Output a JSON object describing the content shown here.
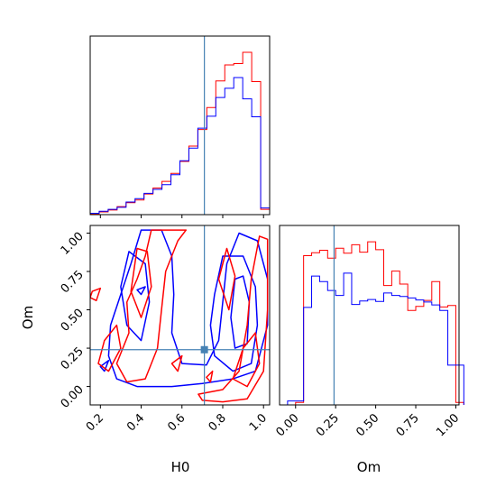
{
  "chart_data": [
    {
      "type": "histogram",
      "panel": "top-left",
      "variable": "H0",
      "xlim": [
        0.15,
        1.03
      ],
      "x_edges": [
        0.15,
        0.194,
        0.238,
        0.282,
        0.326,
        0.37,
        0.414,
        0.458,
        0.502,
        0.546,
        0.59,
        0.634,
        0.678,
        0.722,
        0.766,
        0.81,
        0.854,
        0.898,
        0.942,
        0.986,
        1.03
      ],
      "truth_line": 0.71,
      "series": [
        {
          "color": "#ff0000",
          "values": [
            1,
            4,
            7,
            12,
            18,
            22,
            31,
            40,
            50,
            62,
            80,
            103,
            128,
            161,
            201,
            225,
            227,
            244,
            200,
            8
          ]
        },
        {
          "color": "#0000ff",
          "values": [
            2,
            5,
            8,
            11,
            19,
            24,
            32,
            38,
            45,
            60,
            81,
            100,
            130,
            148,
            176,
            190,
            206,
            174,
            147,
            10
          ]
        }
      ]
    },
    {
      "type": "contour",
      "panel": "bottom-left",
      "xlabel": "H0",
      "ylabel": "Om",
      "xlim": [
        0.15,
        1.03
      ],
      "ylim": [
        -0.12,
        1.05
      ],
      "xticks": [
        "0.2",
        "0.4",
        "0.6",
        "0.8",
        "1.0"
      ],
      "yticks": [
        "0.00",
        "0.25",
        "0.50",
        "0.75",
        "1.00"
      ],
      "xtick_values": [
        0.2,
        0.4,
        0.6,
        0.8,
        1.0
      ],
      "ytick_values": [
        0.0,
        0.25,
        0.5,
        0.75,
        1.0
      ],
      "truth": {
        "H0": 0.71,
        "Om": 0.24
      },
      "series": [
        {
          "color": "#0000ff",
          "contours": [
            [
              [
                0.4,
                1.02
              ],
              [
                0.35,
                0.8
              ],
              [
                0.3,
                0.6
              ],
              [
                0.25,
                0.4
              ],
              [
                0.24,
                0.2
              ],
              [
                0.28,
                0.05
              ],
              [
                0.38,
                0.0
              ],
              [
                0.55,
                0.0
              ],
              [
                0.7,
                0.02
              ],
              [
                0.85,
                0.05
              ],
              [
                0.96,
                0.1
              ],
              [
                1.02,
                0.4
              ],
              [
                1.02,
                0.7
              ],
              [
                0.97,
                0.95
              ],
              [
                0.88,
                1.0
              ],
              [
                0.82,
                0.8
              ],
              [
                0.8,
                0.55
              ],
              [
                0.78,
                0.3
              ],
              [
                0.72,
                0.14
              ],
              [
                0.6,
                0.15
              ],
              [
                0.55,
                0.35
              ],
              [
                0.56,
                0.6
              ],
              [
                0.55,
                0.85
              ],
              [
                0.5,
                1.02
              ]
            ],
            [
              [
                0.8,
                0.85
              ],
              [
                0.76,
                0.6
              ],
              [
                0.74,
                0.4
              ],
              [
                0.76,
                0.2
              ],
              [
                0.85,
                0.1
              ],
              [
                0.94,
                0.15
              ],
              [
                0.97,
                0.4
              ],
              [
                0.96,
                0.65
              ],
              [
                0.9,
                0.85
              ]
            ],
            [
              [
                0.86,
                0.7
              ],
              [
                0.84,
                0.45
              ],
              [
                0.86,
                0.25
              ],
              [
                0.92,
                0.28
              ],
              [
                0.93,
                0.55
              ],
              [
                0.9,
                0.72
              ]
            ],
            [
              [
                0.34,
                0.88
              ],
              [
                0.3,
                0.65
              ],
              [
                0.33,
                0.4
              ],
              [
                0.4,
                0.3
              ],
              [
                0.44,
                0.55
              ],
              [
                0.42,
                0.8
              ]
            ],
            [
              [
                0.2,
                0.13
              ],
              [
                0.24,
                0.17
              ],
              [
                0.22,
                0.1
              ]
            ],
            [
              [
                0.38,
                0.63
              ],
              [
                0.42,
                0.65
              ],
              [
                0.4,
                0.6
              ]
            ]
          ]
        },
        {
          "color": "#ff0000",
          "contours": [
            [
              [
                0.45,
                1.02
              ],
              [
                0.42,
                0.85
              ],
              [
                0.38,
                0.7
              ],
              [
                0.33,
                0.55
              ],
              [
                0.34,
                0.35
              ],
              [
                0.28,
                0.15
              ],
              [
                0.33,
                0.03
              ],
              [
                0.42,
                0.05
              ],
              [
                0.48,
                0.25
              ],
              [
                0.5,
                0.5
              ],
              [
                0.52,
                0.75
              ],
              [
                0.58,
                0.95
              ],
              [
                0.62,
                1.02
              ]
            ],
            [
              [
                0.38,
                0.9
              ],
              [
                0.35,
                0.62
              ],
              [
                0.4,
                0.45
              ],
              [
                0.45,
                0.65
              ],
              [
                0.43,
                0.88
              ]
            ],
            [
              [
                0.16,
                0.62
              ],
              [
                0.2,
                0.64
              ],
              [
                0.18,
                0.56
              ],
              [
                0.15,
                0.58
              ]
            ],
            [
              [
                0.19,
                0.15
              ],
              [
                0.24,
                0.1
              ],
              [
                0.3,
                0.25
              ],
              [
                0.28,
                0.4
              ],
              [
                0.22,
                0.3
              ]
            ],
            [
              [
                0.68,
                -0.05
              ],
              [
                0.8,
                -0.02
              ],
              [
                0.88,
                0.1
              ],
              [
                0.92,
                0.4
              ],
              [
                0.94,
                0.7
              ],
              [
                0.98,
                0.98
              ],
              [
                1.02,
                0.96
              ],
              [
                1.02,
                0.5
              ],
              [
                1.0,
                0.1
              ],
              [
                0.92,
                -0.08
              ],
              [
                0.8,
                -0.1
              ],
              [
                0.7,
                -0.09
              ]
            ],
            [
              [
                0.82,
                0.9
              ],
              [
                0.78,
                0.7
              ],
              [
                0.83,
                0.5
              ],
              [
                0.86,
                0.72
              ]
            ],
            [
              [
                0.85,
                0.05
              ],
              [
                0.9,
                0.25
              ],
              [
                0.96,
                0.35
              ],
              [
                0.98,
                0.15
              ],
              [
                0.92,
                0.0
              ]
            ],
            [
              [
                0.72,
                0.06
              ],
              [
                0.75,
                0.1
              ],
              [
                0.74,
                0.03
              ]
            ],
            [
              [
                0.55,
                0.15
              ],
              [
                0.6,
                0.2
              ],
              [
                0.58,
                0.1
              ]
            ]
          ]
        }
      ]
    },
    {
      "type": "histogram",
      "panel": "bottom-right",
      "variable": "Om",
      "xlabel": "Om",
      "xlim": [
        -0.1,
        1.02
      ],
      "xticks": [
        "0.00",
        "0.25",
        "0.50",
        "0.75",
        "1.00"
      ],
      "xtick_values": [
        0.0,
        0.25,
        0.5,
        0.75,
        1.0
      ],
      "x_edges": [
        -0.05,
        0.0,
        0.05,
        0.1,
        0.15,
        0.2,
        0.25,
        0.3,
        0.35,
        0.4,
        0.45,
        0.5,
        0.55,
        0.6,
        0.65,
        0.7,
        0.75,
        0.8,
        0.85,
        0.9,
        0.95,
        1.0,
        1.05
      ],
      "truth_line": 0.24,
      "series": [
        {
          "color": "#ff0000",
          "values": [
            0,
            5,
            300,
            306,
            311,
            295,
            315,
            305,
            322,
            307,
            328,
            312,
            240,
            269,
            243,
            190,
            198,
            210,
            248,
            197,
            200,
            5
          ]
        },
        {
          "color": "#0000ff",
          "values": [
            8,
            8,
            196,
            259,
            248,
            230,
            220,
            265,
            202,
            209,
            212,
            208,
            225,
            220,
            218,
            215,
            211,
            207,
            201,
            190,
            80,
            80
          ]
        }
      ]
    }
  ]
}
